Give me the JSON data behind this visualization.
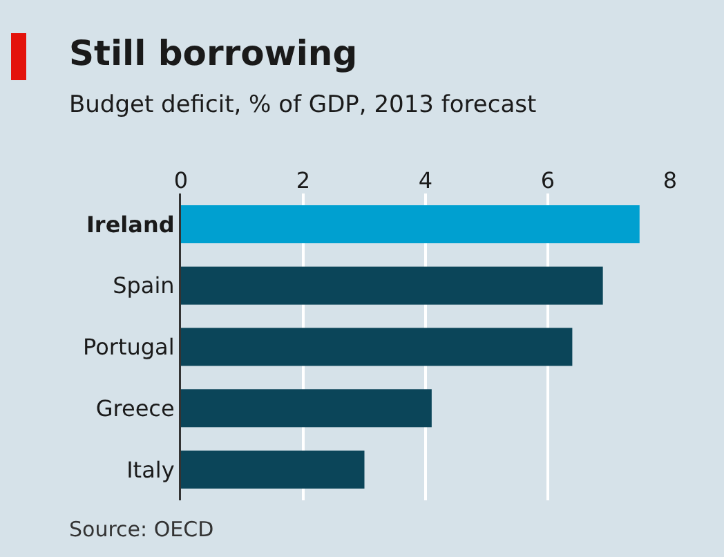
{
  "chart_data": {
    "type": "bar",
    "orientation": "horizontal",
    "title": "Still borrowing",
    "subtitle": "Budget deficit, % of GDP, 2013 forecast",
    "categories": [
      "Ireland",
      "Spain",
      "Portugal",
      "Greece",
      "Italy"
    ],
    "values": [
      7.5,
      6.9,
      6.4,
      4.1,
      3.0
    ],
    "colors": [
      "#00a0d0",
      "#0b4559",
      "#0b4559",
      "#0b4559",
      "#0b4559"
    ],
    "xlim": [
      0,
      8
    ],
    "xticks": [
      0,
      2,
      4,
      6,
      8
    ],
    "grid": "x",
    "legend": false,
    "annotations": [
      "Source: OECD"
    ]
  }
}
